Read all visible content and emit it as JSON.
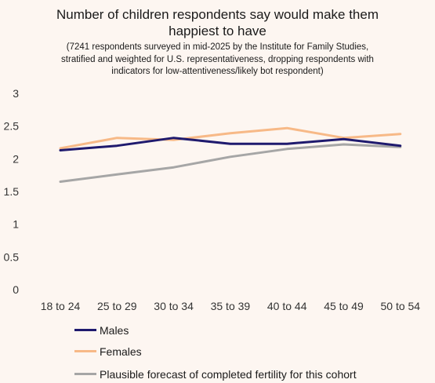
{
  "header": {
    "title_line1": "Number of children respondents say would make them",
    "title_line2": "happiest to have",
    "subtitle_line1": "(7241 respondents surveyed in mid-2025 by the Institute for Family Studies,",
    "subtitle_line2": "stratified and weighted for U.S. representativeness, dropping respondents with",
    "subtitle_line3": "indicators for low-attentiveness/likely bot respondent)"
  },
  "chart_data": {
    "type": "line",
    "title": "Number of children respondents say would make them happiest to have",
    "subtitle": "(7241 respondents surveyed in mid-2025 by the Institute for Family Studies, stratified and weighted for U.S. representativeness, dropping respondents with indicators for low-attentiveness/likely bot respondent)",
    "categories": [
      "18 to 24",
      "25 to 29",
      "30 to 34",
      "35 to 39",
      "40 to 44",
      "45 to 49",
      "50 to 54"
    ],
    "y_ticks": [
      "0",
      "0.5",
      "1",
      "1.5",
      "2",
      "2.5",
      "3"
    ],
    "ylim": [
      0,
      3
    ],
    "grid": false,
    "legend_position": "bottom",
    "series": [
      {
        "name": "Males",
        "color": "#1f1a6e",
        "values": [
          2.13,
          2.2,
          2.32,
          2.23,
          2.23,
          2.3,
          2.2
        ]
      },
      {
        "name": "Females",
        "color": "#f7b987",
        "values": [
          2.16,
          2.32,
          2.29,
          2.39,
          2.47,
          2.32,
          2.38
        ]
      },
      {
        "name": "Plausible forecast of completed fertility for this cohort",
        "color": "#a6a6a6",
        "values": [
          1.65,
          1.76,
          1.87,
          2.03,
          2.15,
          2.22,
          2.18
        ]
      }
    ]
  }
}
